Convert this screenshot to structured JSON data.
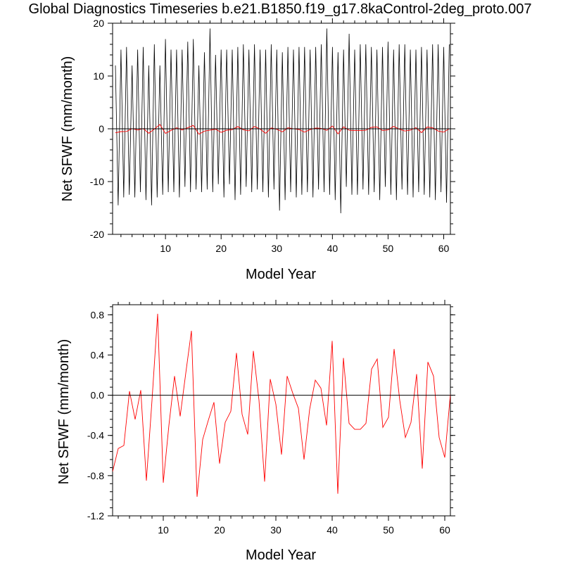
{
  "figure": {
    "title": "Global Diagnostics Timeseries b.e21.B1850.f19_g17.8kaControl-2deg_proto.007"
  },
  "colors": {
    "monthly_line": "#000000",
    "annual_line": "#ff0000",
    "zero_line": "#000000"
  },
  "chart_data": [
    {
      "type": "line",
      "title": "",
      "xlabel": "Model Year",
      "ylabel": "Net SFWF (mm/month)",
      "xlim": [
        0.5,
        61.2
      ],
      "ylim": [
        -20,
        20
      ],
      "xticks": [
        10,
        20,
        30,
        40,
        50,
        60
      ],
      "yticks": [
        -20,
        -10,
        0,
        10,
        20
      ],
      "reference_line_y": 0,
      "series": [
        {
          "key": "monthly",
          "color": "#000000",
          "x": [
            1,
            1.5,
            2,
            2.5,
            3,
            3.5,
            4,
            4.5,
            5,
            5.5,
            6,
            6.5,
            7,
            7.5,
            8,
            8.5,
            9,
            9.5,
            10,
            10.5,
            11,
            11.5,
            12,
            12.5,
            13,
            13.5,
            14,
            14.5,
            15,
            15.5,
            16,
            16.5,
            17,
            17.5,
            18,
            18.5,
            19,
            19.5,
            20,
            20.5,
            21,
            21.5,
            22,
            22.5,
            23,
            23.5,
            24,
            24.5,
            25,
            25.5,
            26,
            26.5,
            27,
            27.5,
            28,
            28.5,
            29,
            29.5,
            30,
            30.5,
            31,
            31.5,
            32,
            32.5,
            33,
            33.5,
            34,
            34.5,
            35,
            35.5,
            36,
            36.5,
            37,
            37.5,
            38,
            38.5,
            39,
            39.5,
            40,
            40.5,
            41,
            41.5,
            42,
            42.5,
            43,
            43.5,
            44,
            44.5,
            45,
            45.5,
            46,
            46.5,
            47,
            47.5,
            48,
            48.5,
            49,
            49.5,
            50,
            50.5,
            51,
            51.5,
            52,
            52.5,
            53,
            53.5,
            54,
            54.5,
            55,
            55.5,
            56,
            56.5,
            57,
            57.5,
            58,
            58.5,
            59,
            59.5,
            60,
            60.5,
            61
          ],
          "values": [
            12,
            -14.5,
            15,
            -13,
            15.5,
            -12.5,
            12,
            -13,
            15,
            -12,
            15.5,
            -13.5,
            12,
            -14.5,
            16,
            -13,
            12,
            -12.5,
            17,
            -12,
            15,
            -12,
            15,
            -13,
            15,
            -11,
            16.5,
            -12,
            17,
            -11.5,
            12,
            -12,
            14.5,
            -11.5,
            19,
            -12,
            14,
            -10.5,
            15,
            -13,
            15,
            -10.5,
            15,
            -13.5,
            15.5,
            -12.5,
            16,
            -11,
            15,
            -12,
            16,
            -11.5,
            15,
            -12,
            15,
            -13,
            16,
            -11.5,
            15,
            -15.5,
            14.5,
            -13.5,
            15.5,
            -12,
            15,
            -13,
            15.5,
            -12.5,
            15.5,
            -12,
            15,
            -13,
            15.5,
            -11.5,
            16,
            -12,
            19,
            -12.5,
            15.5,
            -13.5,
            14.5,
            -16,
            15,
            -11,
            18,
            -12.5,
            15,
            -12.5,
            16,
            -11.5,
            16,
            -12.5,
            15.5,
            -12,
            15,
            -13.5,
            15.5,
            -11,
            16.5,
            -12.5,
            15,
            -13.5,
            16,
            -11.5,
            16,
            -12.5,
            15,
            -13,
            15,
            -12,
            15.5,
            -12.5,
            15,
            -13,
            16,
            -13.5,
            16,
            -12,
            15.5,
            -14,
            16
          ]
        },
        {
          "key": "annual",
          "color": "#ff0000",
          "x": [
            1,
            2,
            3,
            4,
            5,
            6,
            7,
            8,
            9,
            10,
            11,
            12,
            13,
            14,
            15,
            16,
            17,
            18,
            19,
            20,
            21,
            22,
            23,
            24,
            25,
            26,
            27,
            28,
            29,
            30,
            31,
            32,
            33,
            34,
            35,
            36,
            37,
            38,
            39,
            40,
            41,
            42,
            43,
            44,
            45,
            46,
            47,
            48,
            49,
            50,
            51,
            52,
            53,
            54,
            55,
            56,
            57,
            58,
            59,
            60,
            61
          ],
          "values": [
            -0.76,
            -0.53,
            -0.5,
            0.04,
            -0.24,
            0.05,
            -0.85,
            -0.05,
            0.81,
            -0.87,
            -0.3,
            0.19,
            -0.21,
            0.22,
            0.64,
            -1.01,
            -0.44,
            -0.25,
            -0.07,
            -0.68,
            -0.27,
            -0.16,
            0.42,
            -0.19,
            -0.39,
            0.44,
            -0.05,
            -0.86,
            0.16,
            -0.09,
            -0.59,
            0.19,
            0.02,
            -0.13,
            -0.64,
            -0.14,
            0.15,
            0.07,
            -0.3,
            0.54,
            -0.98,
            0.37,
            -0.28,
            -0.34,
            -0.34,
            -0.28,
            0.26,
            0.36,
            -0.32,
            -0.22,
            0.46,
            -0.05,
            -0.42,
            -0.27,
            0.21,
            -0.73,
            0.33,
            0.19,
            -0.42,
            -0.62,
            0.01
          ]
        }
      ]
    },
    {
      "type": "line",
      "title": "",
      "xlabel": "Model Year",
      "ylabel": "Net SFWF (mm/month)",
      "xlim": [
        1,
        61
      ],
      "ylim": [
        -1.2,
        0.9
      ],
      "xticks": [
        10,
        20,
        30,
        40,
        50,
        60
      ],
      "yticks": [
        -1.2,
        -0.8,
        -0.4,
        0.0,
        0.4,
        0.8
      ],
      "ytick_labels": [
        "-1.2",
        "-0.8",
        "-0.4",
        "0.0",
        "0.4",
        "0.8"
      ],
      "reference_line_y": 0,
      "series": [
        {
          "key": "annual",
          "color": "#ff0000",
          "x": [
            1,
            2,
            3,
            4,
            5,
            6,
            7,
            8,
            9,
            10,
            11,
            12,
            13,
            14,
            15,
            16,
            17,
            18,
            19,
            20,
            21,
            22,
            23,
            24,
            25,
            26,
            27,
            28,
            29,
            30,
            31,
            32,
            33,
            34,
            35,
            36,
            37,
            38,
            39,
            40,
            41,
            42,
            43,
            44,
            45,
            46,
            47,
            48,
            49,
            50,
            51,
            52,
            53,
            54,
            55,
            56,
            57,
            58,
            59,
            60,
            61
          ],
          "values": [
            -0.76,
            -0.53,
            -0.5,
            0.04,
            -0.24,
            0.05,
            -0.85,
            -0.05,
            0.81,
            -0.87,
            -0.3,
            0.19,
            -0.21,
            0.22,
            0.64,
            -1.01,
            -0.44,
            -0.25,
            -0.07,
            -0.68,
            -0.27,
            -0.16,
            0.42,
            -0.19,
            -0.39,
            0.44,
            -0.05,
            -0.86,
            0.16,
            -0.09,
            -0.59,
            0.19,
            0.02,
            -0.13,
            -0.64,
            -0.14,
            0.15,
            0.07,
            -0.3,
            0.54,
            -0.98,
            0.37,
            -0.28,
            -0.34,
            -0.34,
            -0.28,
            0.26,
            0.36,
            -0.32,
            -0.22,
            0.46,
            -0.05,
            -0.42,
            -0.27,
            0.21,
            -0.73,
            0.33,
            0.19,
            -0.42,
            -0.62,
            0.01
          ]
        }
      ]
    }
  ]
}
